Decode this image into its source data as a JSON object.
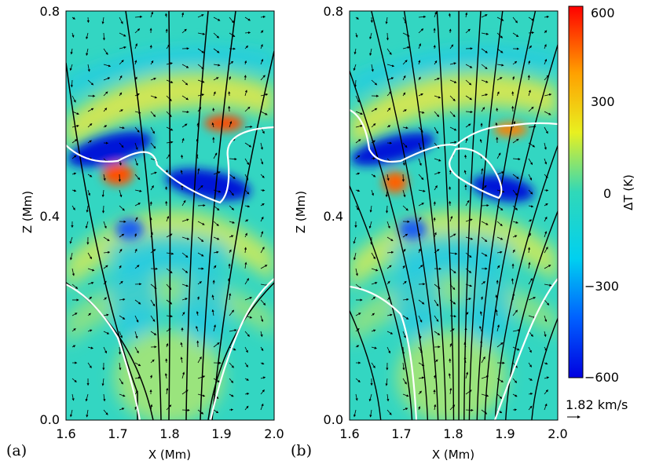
{
  "chart_data": [
    {
      "type": "heatmap",
      "panel_label": "(a)",
      "xlabel": "X (Mm)",
      "ylabel": "Z (Mm)",
      "xlim": [
        1.6,
        2.0
      ],
      "ylim": [
        0.0,
        0.8
      ],
      "x_ticks": [
        "1.6",
        "1.7",
        "1.8",
        "1.9",
        "2.0"
      ],
      "y_ticks": [
        "0.0",
        "0.4",
        "0.8"
      ],
      "field_lines_bottom_x": [
        1.755,
        1.79,
        1.83,
        1.86,
        1.9,
        2.0
      ],
      "overlays": [
        "velocity arrows",
        "black magnetic field lines",
        "white contours"
      ]
    },
    {
      "type": "heatmap",
      "panel_label": "(b)",
      "xlabel": "X (Mm)",
      "ylabel": "Z (Mm)",
      "xlim": [
        1.6,
        2.0
      ],
      "ylim": [
        0.0,
        0.8
      ],
      "x_ticks": [
        "1.6",
        "1.7",
        "1.8",
        "1.9",
        "2.0"
      ],
      "y_ticks": [
        "0.0",
        "0.4",
        "0.8"
      ],
      "field_lines_bottom_x": [
        1.66,
        1.72,
        1.75,
        1.77,
        1.785,
        1.8,
        1.81,
        1.82,
        1.83,
        1.845,
        1.86,
        1.88,
        1.9,
        1.95,
        2.0
      ],
      "overlays": [
        "velocity arrows",
        "black magnetic field lines",
        "white contours"
      ]
    }
  ],
  "colorbar": {
    "label": "ΔT (K)",
    "range": [
      -600,
      600
    ],
    "ticks": [
      "600",
      "300",
      "0",
      "−300",
      "−600"
    ]
  },
  "vector_key": {
    "label": "1.82 km/s"
  },
  "colors": {
    "background": "#2fd3c0",
    "hot": "#ff1a00",
    "cold": "#0010d8",
    "field_line": "#000000",
    "contour": "#ffffff"
  }
}
